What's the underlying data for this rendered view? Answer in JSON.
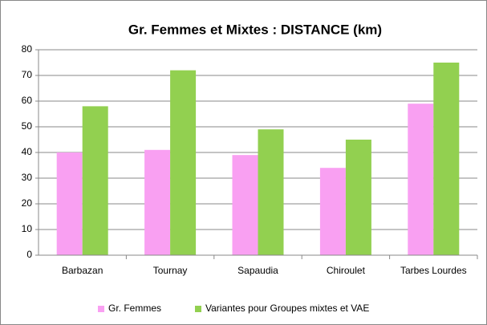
{
  "chart_data": {
    "type": "bar",
    "title": "Gr. Femmes et Mixtes : DISTANCE (km)",
    "categories": [
      "Barbazan",
      "Tournay",
      "Sapaudia",
      "Chiroulet",
      "Tarbes Lourdes"
    ],
    "series": [
      {
        "name": "Gr. Femmes",
        "color": "#f9a0f2",
        "values": [
          40,
          41,
          39,
          34,
          59
        ]
      },
      {
        "name": "Variantes pour Groupes mixtes et VAE",
        "color": "#92d050",
        "values": [
          58,
          72,
          49,
          45,
          75
        ]
      }
    ],
    "ylim": [
      0,
      80
    ],
    "yticks": [
      0,
      10,
      20,
      30,
      40,
      50,
      60,
      70,
      80
    ],
    "grid": true,
    "legend": "bottom"
  }
}
